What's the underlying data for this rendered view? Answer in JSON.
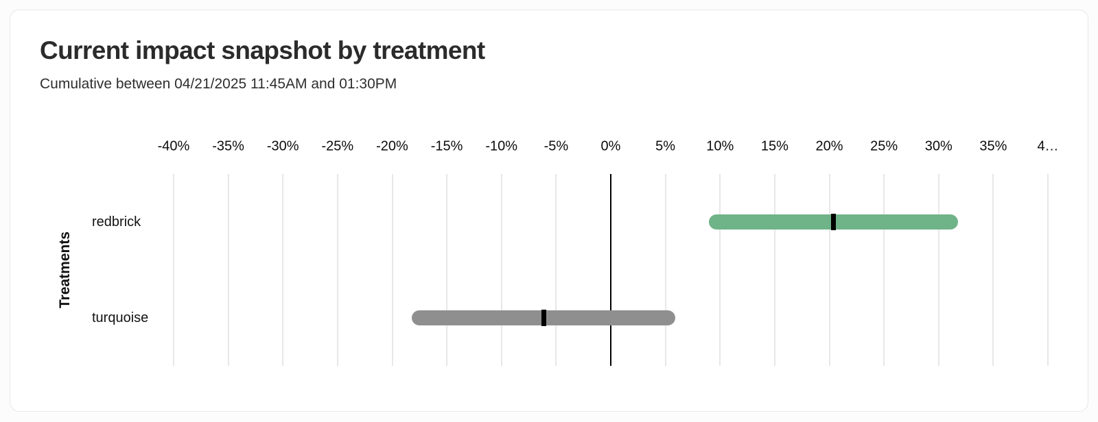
{
  "card": {
    "title": "Current impact snapshot by treatment",
    "subtitle": "Cumulative between 04/21/2025 11:45AM and 01:30PM"
  },
  "chart_data": {
    "type": "bar",
    "subtype": "horizontal-interval-bars-with-point-markers",
    "title": "Current impact snapshot by treatment",
    "subtitle": "Cumulative between 04/21/2025 11:45AM and 01:30PM",
    "xlabel": "",
    "ylabel": "Treatments",
    "categories": [
      "redbrick",
      "turquoise"
    ],
    "series": [
      {
        "name": "redbrick",
        "point_pct": 20.4,
        "ci_low_pct": 9.0,
        "ci_high_pct": 31.8,
        "bar_color": "#6fb388"
      },
      {
        "name": "turquoise",
        "point_pct": -6.1,
        "ci_low_pct": -18.2,
        "ci_high_pct": 5.9,
        "bar_color": "#8f8f8f"
      }
    ],
    "xlim": [
      -40,
      40
    ],
    "x_tick_step": 5,
    "x_tick_labels": [
      "-40%",
      "-35%",
      "-30%",
      "-25%",
      "-20%",
      "-15%",
      "-10%",
      "-5%",
      "0%",
      "5%",
      "10%",
      "15%",
      "20%",
      "25%",
      "30%",
      "35%",
      "4…"
    ],
    "grid": true,
    "legend": "none",
    "grid_color": "#e7e7e7",
    "zero_line_color": "#000000",
    "point_marker_color": "#000000",
    "axis_text_color": "#0d0d0d"
  }
}
